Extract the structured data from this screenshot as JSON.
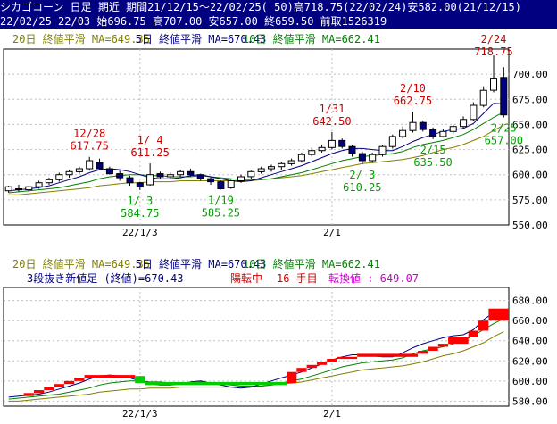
{
  "header": {
    "line1": "シカゴコーン 日足 期近 期間21/12/15～22/02/25( 50)高718.75(22/02/24)安582.00(21/12/15)",
    "line2": "22/02/25 22/03 始696.75 高707.00 安657.00 終659.50 前取1526319"
  },
  "colors": {
    "up": "#ffffff",
    "down": "#000080",
    "ma20": "#808000",
    "ma5": "#000080",
    "ma10": "#008000",
    "high_label": "#cc0000",
    "low_label": "#00a000",
    "rb_up": "#ff0000",
    "rb_down": "#00cc00"
  },
  "chart_data": [
    {
      "type": "candlestick",
      "legend": [
        {
          "label": "20日 終値平滑 MA=649.35",
          "color": "#808000"
        },
        {
          "label": "5日 終値平滑 MA=670.43",
          "color": "#000080"
        },
        {
          "label": "10日 終値平滑 MA=662.41",
          "color": "#008000"
        }
      ],
      "ylim": [
        550,
        725
      ],
      "yticks": [
        "550.00",
        "575.00",
        "600.00",
        "625.00",
        "650.00",
        "675.00",
        "700.00"
      ],
      "xticks": [
        {
          "label": "22/1/3",
          "index": 13
        },
        {
          "label": "2/1",
          "index": 32
        }
      ],
      "candles": [
        {
          "o": 584,
          "h": 589,
          "l": 582,
          "c": 588
        },
        {
          "o": 586,
          "h": 590,
          "l": 583,
          "c": 585
        },
        {
          "o": 585,
          "h": 589,
          "l": 583,
          "c": 588
        },
        {
          "o": 588,
          "h": 594,
          "l": 586,
          "c": 592
        },
        {
          "o": 592,
          "h": 597,
          "l": 590,
          "c": 595
        },
        {
          "o": 595,
          "h": 602,
          "l": 593,
          "c": 600
        },
        {
          "o": 600,
          "h": 605,
          "l": 597,
          "c": 603
        },
        {
          "o": 603,
          "h": 608,
          "l": 601,
          "c": 606
        },
        {
          "o": 606,
          "h": 617.75,
          "l": 604,
          "c": 614
        },
        {
          "o": 612,
          "h": 616,
          "l": 605,
          "c": 606
        },
        {
          "o": 606,
          "h": 608,
          "l": 600,
          "c": 601
        },
        {
          "o": 601,
          "h": 604,
          "l": 594,
          "c": 597
        },
        {
          "o": 597,
          "h": 599,
          "l": 589,
          "c": 592
        },
        {
          "o": 592,
          "h": 593,
          "l": 584.75,
          "c": 588
        },
        {
          "o": 590,
          "h": 611.25,
          "l": 589,
          "c": 600
        },
        {
          "o": 601,
          "h": 603,
          "l": 596,
          "c": 598
        },
        {
          "o": 598,
          "h": 602,
          "l": 596,
          "c": 600
        },
        {
          "o": 600,
          "h": 605,
          "l": 598,
          "c": 603
        },
        {
          "o": 603,
          "h": 606,
          "l": 598,
          "c": 600
        },
        {
          "o": 600,
          "h": 601,
          "l": 594,
          "c": 596
        },
        {
          "o": 596,
          "h": 598,
          "l": 590,
          "c": 593
        },
        {
          "o": 593,
          "h": 594,
          "l": 585.25,
          "c": 586
        },
        {
          "o": 587,
          "h": 595,
          "l": 586,
          "c": 594
        },
        {
          "o": 594,
          "h": 600,
          "l": 592,
          "c": 598
        },
        {
          "o": 598,
          "h": 604,
          "l": 596,
          "c": 603
        },
        {
          "o": 603,
          "h": 608,
          "l": 601,
          "c": 606
        },
        {
          "o": 606,
          "h": 610,
          "l": 603,
          "c": 608
        },
        {
          "o": 608,
          "h": 613,
          "l": 605,
          "c": 611
        },
        {
          "o": 611,
          "h": 616,
          "l": 609,
          "c": 614
        },
        {
          "o": 614,
          "h": 622,
          "l": 612,
          "c": 620
        },
        {
          "o": 620,
          "h": 627,
          "l": 618,
          "c": 624
        },
        {
          "o": 624,
          "h": 630,
          "l": 622,
          "c": 627
        },
        {
          "o": 627,
          "h": 642.5,
          "l": 625,
          "c": 634
        },
        {
          "o": 634,
          "h": 636,
          "l": 626,
          "c": 628
        },
        {
          "o": 628,
          "h": 630,
          "l": 618,
          "c": 621
        },
        {
          "o": 621,
          "h": 623,
          "l": 610.25,
          "c": 614
        },
        {
          "o": 614,
          "h": 622,
          "l": 612,
          "c": 620
        },
        {
          "o": 620,
          "h": 630,
          "l": 618,
          "c": 628
        },
        {
          "o": 628,
          "h": 640,
          "l": 626,
          "c": 638
        },
        {
          "o": 638,
          "h": 648,
          "l": 636,
          "c": 644
        },
        {
          "o": 644,
          "h": 662.75,
          "l": 642,
          "c": 652
        },
        {
          "o": 652,
          "h": 654,
          "l": 643,
          "c": 645
        },
        {
          "o": 645,
          "h": 647,
          "l": 635.5,
          "c": 638
        },
        {
          "o": 638,
          "h": 645,
          "l": 637,
          "c": 643
        },
        {
          "o": 643,
          "h": 650,
          "l": 641,
          "c": 648
        },
        {
          "o": 648,
          "h": 658,
          "l": 646,
          "c": 655
        },
        {
          "o": 655,
          "h": 672,
          "l": 653,
          "c": 669
        },
        {
          "o": 669,
          "h": 688,
          "l": 667,
          "c": 684
        },
        {
          "o": 684,
          "h": 718.75,
          "l": 682,
          "c": 696
        },
        {
          "o": 696.75,
          "h": 707,
          "l": 657,
          "c": 659.5
        }
      ],
      "ma5": [
        584,
        585,
        586,
        587,
        589,
        592,
        595,
        598,
        602,
        605,
        606,
        605,
        603,
        600,
        597,
        596,
        596,
        597,
        599,
        600,
        598,
        596,
        594,
        593,
        594,
        597,
        600,
        603,
        606,
        609,
        613,
        617,
        621,
        624,
        626,
        626,
        625,
        624,
        624,
        628,
        633,
        637,
        640,
        643,
        645,
        646,
        651,
        661,
        671,
        670.43
      ],
      "ma10": [
        582,
        583,
        584,
        585,
        586,
        587,
        589,
        591,
        593,
        596,
        598,
        599,
        600,
        600,
        599,
        599,
        598,
        598,
        598,
        599,
        598,
        597,
        596,
        595,
        595,
        595,
        596,
        598,
        600,
        602,
        605,
        608,
        611,
        614,
        616,
        618,
        619,
        620,
        621,
        623,
        627,
        630,
        632,
        634,
        637,
        640,
        645,
        651,
        657,
        662.41
      ],
      "ma20": [
        580,
        580,
        581,
        582,
        583,
        584,
        585,
        586,
        587,
        589,
        590,
        591,
        592,
        592,
        593,
        593,
        593,
        594,
        594,
        594,
        594,
        594,
        594,
        594,
        594,
        595,
        596,
        597,
        598,
        599,
        601,
        603,
        605,
        607,
        609,
        611,
        612,
        613,
        614,
        615,
        617,
        619,
        622,
        625,
        627,
        630,
        634,
        638,
        644,
        649.35
      ],
      "annotations": [
        {
          "text": "12/28",
          "value": "617.75",
          "index": 8,
          "kind": "high"
        },
        {
          "text": "1/ 4",
          "value": "611.25",
          "index": 14,
          "kind": "high"
        },
        {
          "text": "1/ 3",
          "value": "584.75",
          "index": 13,
          "kind": "low"
        },
        {
          "text": "1/19",
          "value": "585.25",
          "index": 21,
          "kind": "low"
        },
        {
          "text": "1/31",
          "value": "642.50",
          "index": 32,
          "kind": "high"
        },
        {
          "text": "2/ 3",
          "value": "610.25",
          "index": 35,
          "kind": "low"
        },
        {
          "text": "2/10",
          "value": "662.75",
          "index": 40,
          "kind": "high"
        },
        {
          "text": "2/15",
          "value": "635.50",
          "index": 42,
          "kind": "low"
        },
        {
          "text": "2/24",
          "value": "718.75",
          "index": 48,
          "kind": "high"
        },
        {
          "text": "2/25",
          "value": "657.00",
          "index": 49,
          "kind": "low"
        }
      ]
    },
    {
      "type": "three-line-break",
      "legend": [
        {
          "label": "20日 終値平滑 MA=649.35",
          "color": "#808000"
        },
        {
          "label": "5日 終値平滑 MA=670.43",
          "color": "#000080"
        },
        {
          "label": "10日 終値平滑 MA=662.41",
          "color": "#008000"
        }
      ],
      "info": {
        "title": "3段抜き新値足 (終値)=670.43",
        "state": "陽転中",
        "count": "16 手目",
        "reversal": "転換値 : 649.07"
      },
      "ylim": [
        575,
        693
      ],
      "yticks": [
        "580.00",
        "600.00",
        "620.00",
        "640.00",
        "660.00",
        "680.00"
      ],
      "xticks": [
        {
          "label": "22/1/3",
          "index": 13
        },
        {
          "label": "2/1",
          "index": 32
        }
      ],
      "bricks": [
        {
          "x0": 2,
          "x1": 3,
          "lo": 585,
          "hi": 588,
          "dir": "up"
        },
        {
          "x0": 3,
          "x1": 4,
          "lo": 588,
          "hi": 591,
          "dir": "up"
        },
        {
          "x0": 4,
          "x1": 5,
          "lo": 591,
          "hi": 594,
          "dir": "up"
        },
        {
          "x0": 5,
          "x1": 6,
          "lo": 594,
          "hi": 597,
          "dir": "up"
        },
        {
          "x0": 6,
          "x1": 7,
          "lo": 597,
          "hi": 600,
          "dir": "up"
        },
        {
          "x0": 7,
          "x1": 8,
          "lo": 600,
          "hi": 603,
          "dir": "up"
        },
        {
          "x0": 8,
          "x1": 13,
          "lo": 603,
          "hi": 606,
          "dir": "up"
        },
        {
          "x0": 13,
          "x1": 14,
          "lo": 598,
          "hi": 605,
          "dir": "down"
        },
        {
          "x0": 14,
          "x1": 28,
          "lo": 596,
          "hi": 599,
          "dir": "down"
        },
        {
          "x0": 28,
          "x1": 29,
          "lo": 598,
          "hi": 609,
          "dir": "up"
        },
        {
          "x0": 29,
          "x1": 30,
          "lo": 609,
          "hi": 613,
          "dir": "up"
        },
        {
          "x0": 30,
          "x1": 31,
          "lo": 613,
          "hi": 616,
          "dir": "up"
        },
        {
          "x0": 31,
          "x1": 32,
          "lo": 616,
          "hi": 619,
          "dir": "up"
        },
        {
          "x0": 32,
          "x1": 33,
          "lo": 619,
          "hi": 622,
          "dir": "up"
        },
        {
          "x0": 33,
          "x1": 35,
          "lo": 622,
          "hi": 624,
          "dir": "up"
        },
        {
          "x0": 35,
          "x1": 41,
          "lo": 624,
          "hi": 627,
          "dir": "up"
        },
        {
          "x0": 41,
          "x1": 42,
          "lo": 627,
          "hi": 630,
          "dir": "up"
        },
        {
          "x0": 42,
          "x1": 43,
          "lo": 630,
          "hi": 634,
          "dir": "up"
        },
        {
          "x0": 43,
          "x1": 44,
          "lo": 634,
          "hi": 637,
          "dir": "up"
        },
        {
          "x0": 44,
          "x1": 46,
          "lo": 637,
          "hi": 644,
          "dir": "up"
        },
        {
          "x0": 46,
          "x1": 47,
          "lo": 644,
          "hi": 650,
          "dir": "up"
        },
        {
          "x0": 47,
          "x1": 48,
          "lo": 650,
          "hi": 660,
          "dir": "up"
        },
        {
          "x0": 48,
          "x1": 50,
          "lo": 660,
          "hi": 672,
          "dir": "up"
        }
      ],
      "ma5": [
        584,
        585,
        586,
        587,
        589,
        592,
        595,
        598,
        602,
        605,
        606,
        605,
        603,
        600,
        597,
        596,
        596,
        597,
        599,
        600,
        598,
        596,
        594,
        593,
        594,
        597,
        600,
        603,
        606,
        609,
        613,
        617,
        621,
        624,
        626,
        626,
        625,
        624,
        624,
        628,
        633,
        637,
        640,
        643,
        645,
        646,
        651,
        661,
        668,
        671
      ],
      "ma10": [
        582,
        583,
        584,
        585,
        586,
        587,
        589,
        591,
        593,
        596,
        598,
        599,
        600,
        600,
        599,
        599,
        598,
        598,
        598,
        599,
        598,
        597,
        596,
        595,
        595,
        595,
        596,
        598,
        600,
        602,
        605,
        608,
        611,
        614,
        616,
        618,
        619,
        620,
        621,
        623,
        627,
        630,
        632,
        634,
        637,
        640,
        645,
        651,
        657,
        662
      ],
      "ma20": [
        580,
        580,
        581,
        582,
        583,
        584,
        585,
        586,
        587,
        589,
        590,
        591,
        592,
        592,
        593,
        593,
        593,
        594,
        594,
        594,
        594,
        594,
        594,
        594,
        594,
        595,
        596,
        597,
        598,
        599,
        601,
        603,
        605,
        607,
        609,
        611,
        612,
        613,
        614,
        615,
        617,
        619,
        622,
        625,
        627,
        630,
        634,
        638,
        644,
        649
      ]
    }
  ]
}
